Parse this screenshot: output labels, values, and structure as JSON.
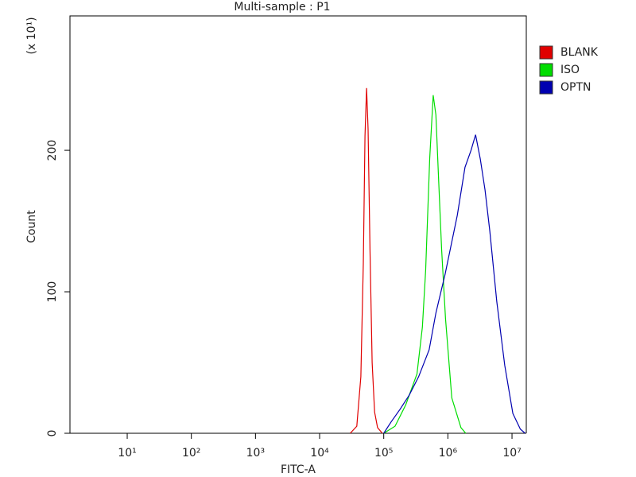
{
  "chart_data": {
    "type": "line",
    "title": "Multi-sample : P1",
    "x_label": "FITC-A",
    "y_label": "Count",
    "y_unit_label": "(x 10¹)",
    "xscale": "log",
    "legend": "right",
    "xlim": [
      1.28,
      16700000
    ],
    "ylim": [
      0,
      295
    ],
    "xticks": [
      {
        "value": 10,
        "label": "10¹"
      },
      {
        "value": 100,
        "label": "10²"
      },
      {
        "value": 1000,
        "label": "10³"
      },
      {
        "value": 10000,
        "label": "10⁴"
      },
      {
        "value": 100000,
        "label": "10⁵"
      },
      {
        "value": 1000000,
        "label": "10⁶"
      },
      {
        "value": 10000000,
        "label": "10⁷"
      }
    ],
    "yticks": [
      0,
      100,
      200
    ],
    "series": [
      {
        "name": "BLANK",
        "color": "#e00000",
        "x": [
          30000,
          38000,
          44000,
          48000,
          51000,
          54000,
          57000,
          61000,
          66000,
          72000,
          80000,
          95000
        ],
        "values": [
          0,
          5,
          40,
          120,
          210,
          244,
          215,
          130,
          50,
          15,
          4,
          0
        ]
      },
      {
        "name": "ISO",
        "color": "#00dd00",
        "x": [
          100000,
          150000,
          220000,
          330000,
          400000,
          450000,
          520000,
          590000,
          650000,
          720000,
          800000,
          920000,
          1150000,
          1600000,
          1900000
        ],
        "values": [
          0,
          5,
          20,
          42,
          75,
          115,
          194,
          239,
          225,
          177,
          130,
          81,
          25,
          4,
          0
        ]
      },
      {
        "name": "OPTN",
        "color": "#0000b0",
        "x": [
          100000,
          130000,
          180000,
          250000,
          350000,
          510000,
          650000,
          900000,
          1400000,
          1850000,
          2300000,
          2700000,
          3200000,
          3800000,
          4500000,
          5800000,
          7700000,
          10300000,
          13500000,
          16000000
        ],
        "values": [
          0,
          8,
          17,
          27,
          40,
          59,
          85,
          112,
          154,
          188,
          200,
          211,
          194,
          172,
          143,
          93,
          48,
          14,
          3,
          0
        ]
      }
    ]
  }
}
